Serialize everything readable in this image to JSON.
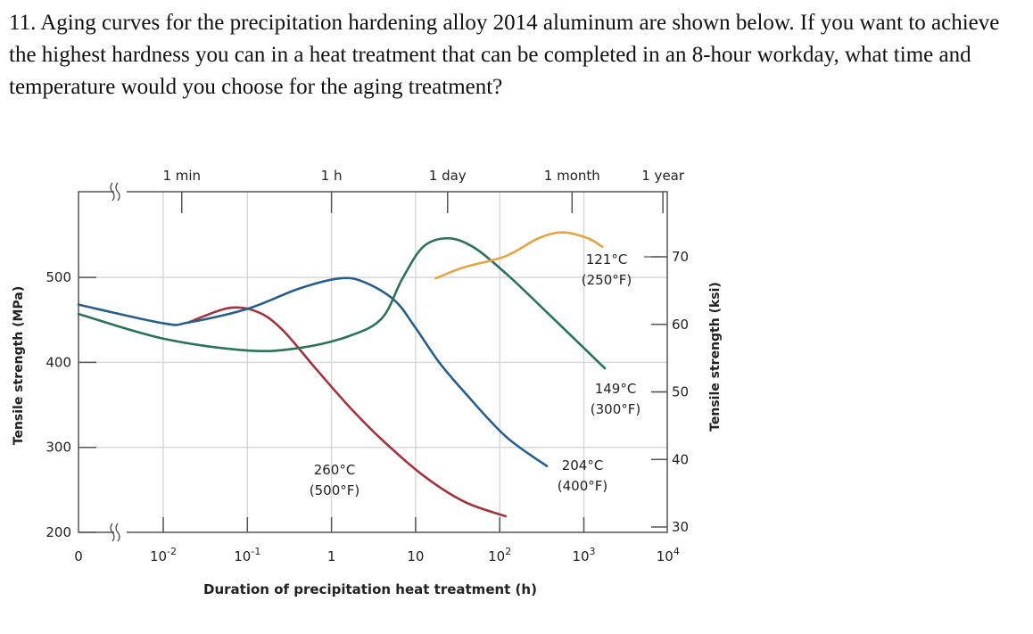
{
  "question": {
    "text": "11. Aging curves for the precipitation hardening alloy 2014 aluminum are shown below.  If you want to achieve the highest hardness you can in a heat treatment that can be completed in an 8-hour workday, what time and temperature would you choose for the aging treatment?"
  },
  "chart_data": {
    "type": "line",
    "xlabel": "Duration of precipitation heat treatment (h)",
    "ylabel": "Tensile strength (MPa)",
    "ylabel_right": "Tensile strength (ksi)",
    "x_scale": "log",
    "xlim_log10": [
      -3,
      4
    ],
    "ylim": [
      200,
      560
    ],
    "x_ticks": [
      {
        "label": "0",
        "sup": "",
        "log10": -3
      },
      {
        "label": "10",
        "sup": "-2",
        "log10": -2
      },
      {
        "label": "10",
        "sup": "-1",
        "log10": -1
      },
      {
        "label": "1",
        "sup": "",
        "log10": 0
      },
      {
        "label": "10",
        "sup": "",
        "log10": 1
      },
      {
        "label": "10",
        "sup": "2",
        "log10": 2
      },
      {
        "label": "10",
        "sup": "3",
        "log10": 3
      },
      {
        "label": "10",
        "sup": "4",
        "log10": 4
      }
    ],
    "top_ticks": [
      {
        "label": "1 min",
        "log10": -1.78
      },
      {
        "label": "1 h",
        "log10": 0
      },
      {
        "label": "1 day",
        "log10": 1.38
      },
      {
        "label": "1 month",
        "log10": 2.86
      },
      {
        "label": "1 year",
        "log10": 3.94
      }
    ],
    "y_ticks": [
      200,
      300,
      400,
      500
    ],
    "y_ticks_right_ksi": [
      30,
      40,
      50,
      60,
      70
    ],
    "grid": true,
    "axis_break": true,
    "series": [
      {
        "name": "260°C",
        "name2": "(500°F)",
        "color": "#a3333d",
        "points_log10h_MPa": [
          [
            -1.7,
            447
          ],
          [
            -1.22,
            464
          ],
          [
            -0.87,
            459
          ],
          [
            -0.58,
            438
          ],
          [
            -0.19,
            393
          ],
          [
            0.21,
            348
          ],
          [
            0.6,
            309
          ],
          [
            1.09,
            267
          ],
          [
            1.58,
            236
          ],
          [
            2.07,
            219
          ]
        ]
      },
      {
        "name": "204°C",
        "name2": "(400°F)",
        "color": "#275f8c",
        "points_log10h_MPa": [
          [
            -3.02,
            468
          ],
          [
            -2,
            446
          ],
          [
            -1.7,
            447
          ],
          [
            -1,
            463
          ],
          [
            -0.38,
            487
          ],
          [
            0.11,
            499
          ],
          [
            0.4,
            494
          ],
          [
            0.75,
            473
          ],
          [
            0.99,
            442
          ],
          [
            1.28,
            400
          ],
          [
            1.58,
            365
          ],
          [
            2.07,
            313
          ],
          [
            2.56,
            278
          ]
        ]
      },
      {
        "name": "149°C",
        "name2": "(300°F)",
        "color": "#2a7258",
        "points_log10h_MPa": [
          [
            -3.02,
            457
          ],
          [
            -2,
            428
          ],
          [
            -1,
            414
          ],
          [
            -0.38,
            417
          ],
          [
            0.21,
            431
          ],
          [
            0.6,
            452
          ],
          [
            0.84,
            498
          ],
          [
            1.09,
            536
          ],
          [
            1.38,
            546
          ],
          [
            1.68,
            536
          ],
          [
            2.07,
            505
          ],
          [
            2.56,
            459
          ],
          [
            3.25,
            393
          ]
        ]
      },
      {
        "name": "121°C",
        "name2": "(250°F)",
        "color": "#e5a544",
        "points_log10h_MPa": [
          [
            1.24,
            499
          ],
          [
            1.58,
            512
          ],
          [
            2.07,
            525
          ],
          [
            2.46,
            546
          ],
          [
            2.75,
            553
          ],
          [
            3.05,
            546
          ],
          [
            3.22,
            536
          ]
        ]
      }
    ]
  }
}
